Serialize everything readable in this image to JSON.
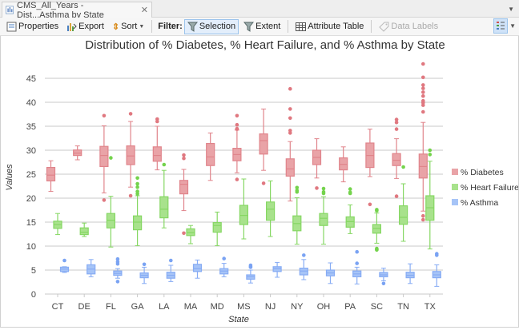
{
  "tab": {
    "title": "CMS_All_Years - Dist...Asthma by State",
    "icon": "chart-icon",
    "close": "✕"
  },
  "toolbar": {
    "properties": "Properties",
    "export": "Export",
    "sort": "Sort",
    "filter_label": "Filter:",
    "selection": "Selection",
    "extent": "Extent",
    "attribute_table": "Attribute Table",
    "data_labels": "Data Labels"
  },
  "colors": {
    "diabetes_fill": "#e9a3a7",
    "diabetes_stroke": "#e0848b",
    "diabetes_dot": "#e07880",
    "hf_fill": "#a8e28c",
    "hf_stroke": "#86d763",
    "hf_dot": "#74d34c",
    "asthma_fill": "#a6c4f7",
    "asthma_stroke": "#87acf4",
    "asthma_dot": "#7aa3f3",
    "grid": "#c9c9c9"
  },
  "chart_data": {
    "type": "boxplot",
    "title": "Distribution of % Diabetes, % Heart Failure, and % Asthma by State",
    "xlabel": "State",
    "ylabel": "Values",
    "ylim": [
      0,
      48.5
    ],
    "yticks": [
      0,
      5,
      10,
      15,
      20,
      25,
      30,
      35,
      40,
      45
    ],
    "grid": true,
    "legend_position": "right",
    "categories": [
      "CT",
      "DE",
      "FL",
      "GA",
      "LA",
      "MA",
      "MD",
      "MS",
      "NJ",
      "NY",
      "OH",
      "PA",
      "SC",
      "TN",
      "TX"
    ],
    "box_format": [
      "whisker_low",
      "q1",
      "median",
      "q3",
      "whisker_high",
      "outliers"
    ],
    "series": [
      {
        "name": "% Diabetes",
        "key": "diabetes",
        "boxes": [
          [
            21.4,
            23.6,
            24.8,
            26.4,
            27.8,
            []
          ],
          [
            28.0,
            28.9,
            29.4,
            30.05,
            30.9,
            []
          ],
          [
            21.1,
            26.6,
            28.9,
            30.8,
            35.1,
            [
              37.2,
              19.6
            ]
          ],
          [
            22.3,
            27.0,
            28.8,
            30.9,
            36.0,
            [
              37.6,
              20.5
            ]
          ],
          [
            25.9,
            27.7,
            28.9,
            30.7,
            35.0,
            [
              36.5,
              36.0
            ]
          ],
          [
            17.4,
            20.9,
            22.9,
            23.7,
            26.0,
            [
              29.0,
              28.3,
              12.7
            ]
          ],
          [
            23.7,
            26.8,
            28.6,
            31.4,
            33.6,
            []
          ],
          [
            25.3,
            27.8,
            29.1,
            30.4,
            34.2,
            [
              37.2,
              35.3,
              34.5,
              34.4,
              23.9
            ]
          ],
          [
            25.8,
            29.2,
            32.0,
            33.4,
            38.6,
            [
              23.1
            ]
          ],
          [
            19.4,
            24.6,
            26.1,
            28.2,
            31.8,
            [
              42.8,
              38.6,
              36.7,
              34.1,
              33.6
            ]
          ],
          [
            24.2,
            27.0,
            28.5,
            30.0,
            32.4,
            [
              22.1
            ]
          ],
          [
            23.4,
            25.9,
            27.05,
            28.4,
            30.7,
            []
          ],
          [
            24.5,
            26.4,
            28.9,
            31.5,
            34.4,
            [
              18.7
            ]
          ],
          [
            24.1,
            26.8,
            27.9,
            29.3,
            32.4,
            [
              36.4,
              35.8,
              34.4,
              20.4
            ]
          ],
          [
            17.3,
            24.2,
            26.6,
            29.2,
            35.8,
            [
              48.0,
              45.2,
              43.6,
              42.9,
              42.1,
              41.3,
              40.3,
              39.9,
              39.4,
              38.0,
              16.3,
              15.5
            ]
          ]
        ]
      },
      {
        "name": "% Heart Failure",
        "key": "hf",
        "boxes": [
          [
            12.4,
            13.7,
            14.5,
            15.2,
            16.8,
            []
          ],
          [
            12.0,
            12.4,
            12.9,
            13.8,
            14.8,
            []
          ],
          [
            9.8,
            13.8,
            15.4,
            16.8,
            20.4,
            [
              28.4
            ]
          ],
          [
            10.1,
            13.4,
            15.0,
            16.3,
            20.5,
            [
              24.2,
              23.0,
              22.3,
              21.4,
              20.9
            ]
          ],
          [
            13.8,
            15.9,
            17.7,
            20.3,
            25.8,
            [
              27.0
            ]
          ],
          [
            10.5,
            12.2,
            12.8,
            13.6,
            14.3,
            []
          ],
          [
            10.1,
            12.9,
            14.3,
            14.9,
            17.1,
            []
          ],
          [
            11.5,
            14.5,
            16.4,
            18.5,
            24.0,
            []
          ],
          [
            12.0,
            15.4,
            17.7,
            19.2,
            23.6,
            []
          ],
          [
            10.4,
            13.2,
            14.7,
            16.3,
            20.1,
            [
              22.2,
              21.6,
              21.3
            ]
          ],
          [
            10.4,
            14.3,
            15.8,
            16.8,
            20.3,
            [
              22.0,
              21.3,
              21.0
            ]
          ],
          [
            12.6,
            13.95,
            15.1,
            16.1,
            18.6,
            [
              21.9,
              21.2,
              21.0
            ]
          ],
          [
            10.6,
            12.7,
            13.7,
            14.5,
            16.9,
            [
              17.6,
              17.4,
              9.5,
              9.3,
              9.2
            ]
          ],
          [
            11.0,
            14.55,
            16.0,
            18.4,
            23.0,
            [
              26.5
            ]
          ],
          [
            9.4,
            15.4,
            18.0,
            20.5,
            27.7,
            [
              30.0,
              29.1
            ]
          ]
        ]
      },
      {
        "name": "% Asthma",
        "key": "asthma",
        "boxes": [
          [
            4.5,
            4.7,
            5.2,
            5.6,
            5.7,
            [
              7.0
            ]
          ],
          [
            3.6,
            4.2,
            5.2,
            6.1,
            7.2,
            []
          ],
          [
            3.3,
            3.9,
            4.3,
            4.8,
            5.3,
            [
              7.3,
              6.7,
              6.3,
              2.6
            ]
          ],
          [
            2.2,
            3.4,
            3.9,
            4.4,
            5.6,
            [
              6.2
            ]
          ],
          [
            2.6,
            3.3,
            3.9,
            4.55,
            6.0,
            [
              7.0
            ]
          ],
          [
            3.3,
            4.7,
            5.3,
            6.2,
            7.1,
            []
          ],
          [
            3.6,
            4.2,
            4.8,
            5.3,
            6.4,
            [
              7.4
            ]
          ],
          [
            2.3,
            3.1,
            3.6,
            4.0,
            5.0,
            [
              6.0,
              5.7,
              5.6
            ]
          ],
          [
            3.5,
            4.7,
            5.3,
            5.7,
            6.6,
            []
          ],
          [
            3.0,
            4.0,
            4.8,
            5.4,
            7.2,
            [
              8.1
            ]
          ],
          [
            2.2,
            3.8,
            4.4,
            5.0,
            6.5,
            []
          ],
          [
            2.1,
            3.6,
            4.2,
            4.8,
            5.6,
            [
              8.8,
              6.4
            ]
          ],
          [
            2.75,
            3.6,
            4.0,
            4.5,
            5.4,
            [
              2.2
            ]
          ],
          [
            2.2,
            3.4,
            3.9,
            4.55,
            6.3,
            []
          ],
          [
            1.6,
            3.4,
            4.0,
            4.7,
            6.1,
            [
              8.4,
              8.1
            ]
          ]
        ]
      }
    ]
  }
}
